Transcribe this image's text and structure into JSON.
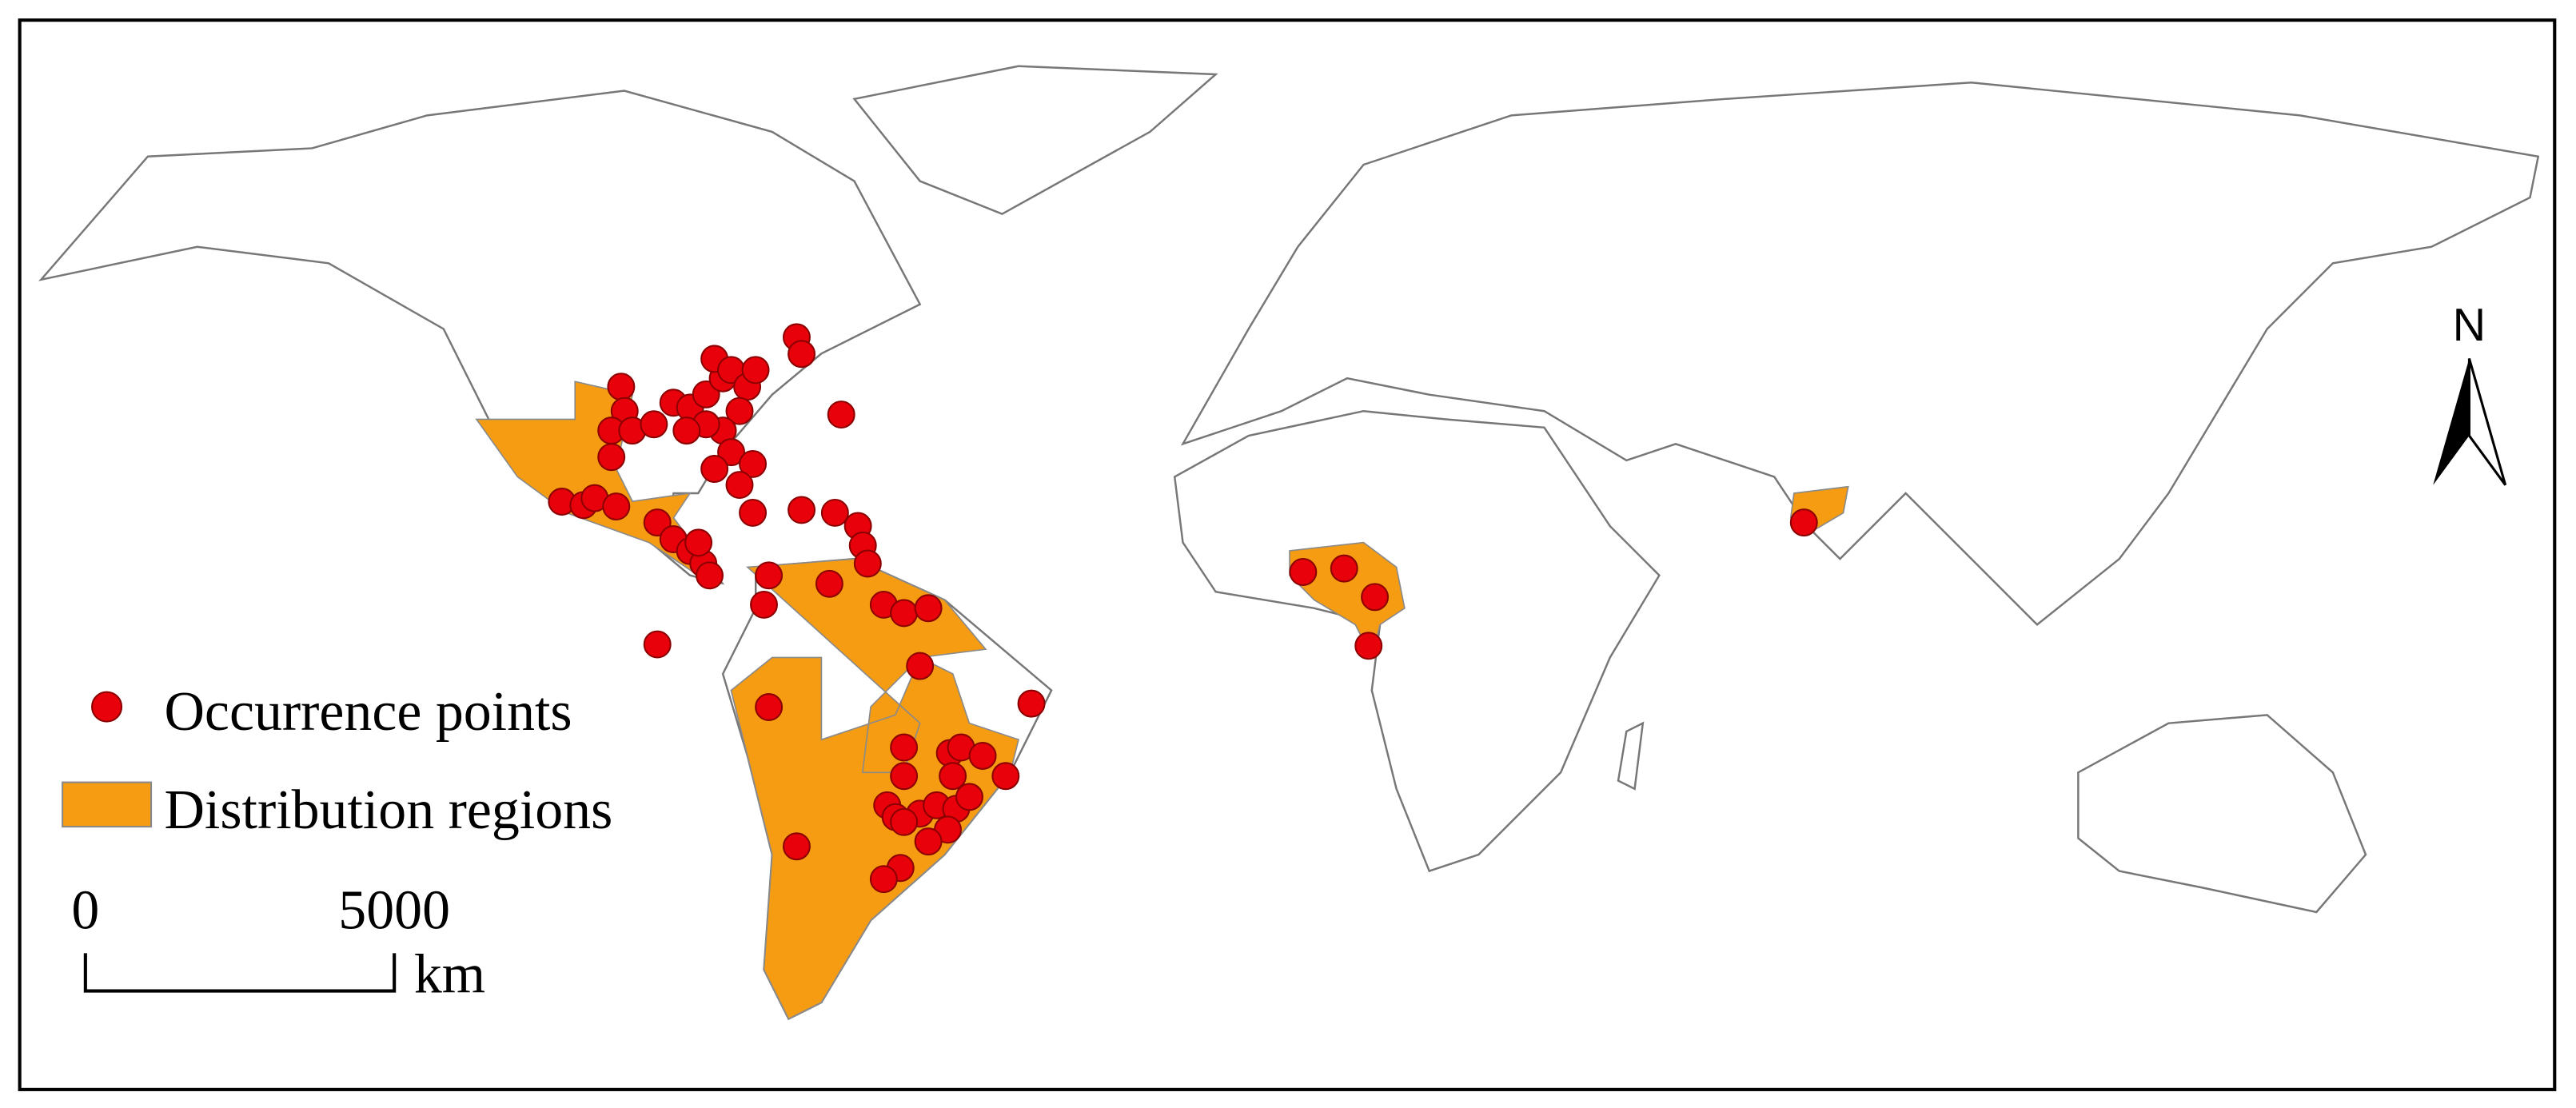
{
  "legend": {
    "points": "Occurrence points",
    "regions": "Distribution regions"
  },
  "scale_bar": {
    "start": "0",
    "end": "5000",
    "unit": "km"
  },
  "north_arrow": "N",
  "occurrence_points": [
    {
      "lon": -95.5,
      "lat": 37.7
    },
    {
      "lon": -95.0,
      "lat": 34.2
    },
    {
      "lon": -96.9,
      "lat": 31.4
    },
    {
      "lon": -93.9,
      "lat": 31.4
    },
    {
      "lon": -90.8,
      "lat": 32.3
    },
    {
      "lon": -88.0,
      "lat": 35.4
    },
    {
      "lon": -85.6,
      "lat": 34.7
    },
    {
      "lon": -83.3,
      "lat": 36.6
    },
    {
      "lon": -80.9,
      "lat": 38.9
    },
    {
      "lon": -82.1,
      "lat": 41.7
    },
    {
      "lon": -79.7,
      "lat": 40.1
    },
    {
      "lon": -77.4,
      "lat": 37.7
    },
    {
      "lon": -76.2,
      "lat": 40.1
    },
    {
      "lon": -78.5,
      "lat": 34.2
    },
    {
      "lon": -80.9,
      "lat": 31.4
    },
    {
      "lon": -83.3,
      "lat": 32.3
    },
    {
      "lon": -86.1,
      "lat": 31.4
    },
    {
      "lon": -96.9,
      "lat": 27.6
    },
    {
      "lon": -79.7,
      "lat": 28.3
    },
    {
      "lon": -76.6,
      "lat": 26.6
    },
    {
      "lon": -78.5,
      "lat": 23.6
    },
    {
      "lon": -82.1,
      "lat": 25.9
    },
    {
      "lon": -70.3,
      "lat": 44.8
    },
    {
      "lon": -69.6,
      "lat": 42.4
    },
    {
      "lon": -63.9,
      "lat": 33.7
    },
    {
      "lon": -104.0,
      "lat": 21.2
    },
    {
      "lon": -100.9,
      "lat": 20.7
    },
    {
      "lon": -99.3,
      "lat": 21.7
    },
    {
      "lon": -96.2,
      "lat": 20.5
    },
    {
      "lon": -90.3,
      "lat": 18.2
    },
    {
      "lon": -88.0,
      "lat": 15.8
    },
    {
      "lon": -85.6,
      "lat": 14.1
    },
    {
      "lon": -83.7,
      "lat": 12.3
    },
    {
      "lon": -82.8,
      "lat": 10.6
    },
    {
      "lon": -84.4,
      "lat": 15.3
    },
    {
      "lon": -76.6,
      "lat": 19.6
    },
    {
      "lon": -69.6,
      "lat": 20.0
    },
    {
      "lon": -64.8,
      "lat": 19.6
    },
    {
      "lon": -61.5,
      "lat": 17.7
    },
    {
      "lon": -60.8,
      "lat": 14.9
    },
    {
      "lon": -60.1,
      "lat": 12.3
    },
    {
      "lon": -74.3,
      "lat": 10.6
    },
    {
      "lon": -65.6,
      "lat": 9.4
    },
    {
      "lon": -57.8,
      "lat": 6.4
    },
    {
      "lon": -54.9,
      "lat": 5.2
    },
    {
      "lon": -51.4,
      "lat": 5.9
    },
    {
      "lon": -75.0,
      "lat": 6.4
    },
    {
      "lon": -90.3,
      "lat": 0.7
    },
    {
      "lon": -52.6,
      "lat": -2.4
    },
    {
      "lon": -74.3,
      "lat": -8.3
    },
    {
      "lon": -36.6,
      "lat": -7.8
    },
    {
      "lon": -54.9,
      "lat": -14.1
    },
    {
      "lon": -48.3,
      "lat": -14.9
    },
    {
      "lon": -46.7,
      "lat": -14.1
    },
    {
      "lon": -43.6,
      "lat": -15.3
    },
    {
      "lon": -40.3,
      "lat": -18.2
    },
    {
      "lon": -47.9,
      "lat": -18.2
    },
    {
      "lon": -54.9,
      "lat": -18.2
    },
    {
      "lon": -57.3,
      "lat": -22.4
    },
    {
      "lon": -56.1,
      "lat": -24.1
    },
    {
      "lon": -52.6,
      "lat": -23.6
    },
    {
      "lon": -50.2,
      "lat": -22.4
    },
    {
      "lon": -47.4,
      "lat": -22.9
    },
    {
      "lon": -45.5,
      "lat": -21.2
    },
    {
      "lon": -48.6,
      "lat": -25.9
    },
    {
      "lon": -51.4,
      "lat": -27.6
    },
    {
      "lon": -54.9,
      "lat": -24.8
    },
    {
      "lon": -70.3,
      "lat": -28.3
    },
    {
      "lon": -55.4,
      "lat": -31.4
    },
    {
      "lon": -57.8,
      "lat": -33.0
    },
    {
      "lon": 2.4,
      "lat": 11.1
    },
    {
      "lon": 8.3,
      "lat": 11.6
    },
    {
      "lon": 12.7,
      "lat": 7.5
    },
    {
      "lon": 11.8,
      "lat": 0.5
    },
    {
      "lon": 74.3,
      "lat": 18.2
    }
  ]
}
